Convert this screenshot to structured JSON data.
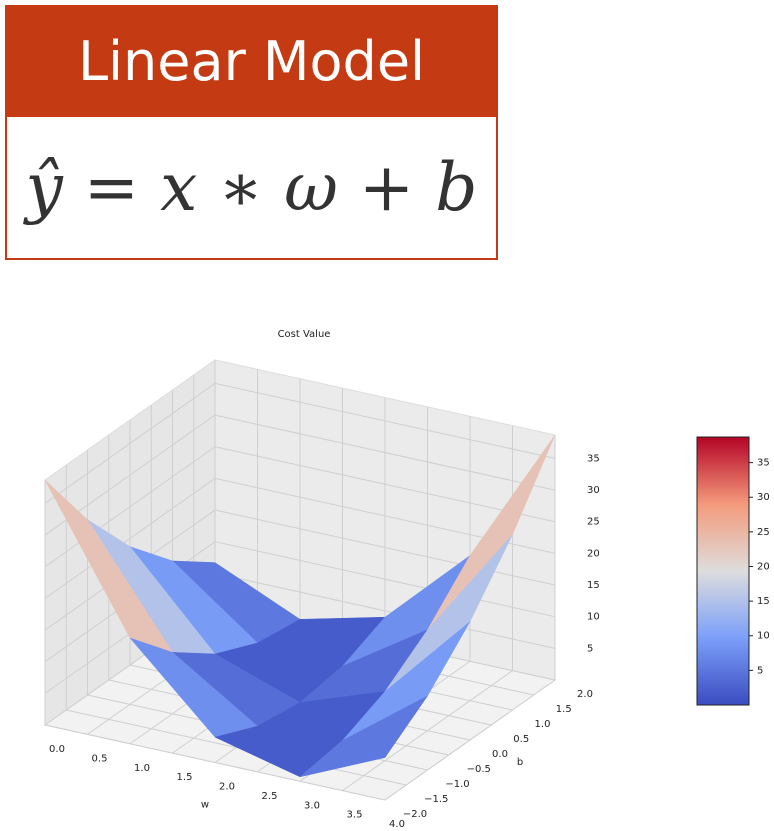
{
  "header": {
    "title": "Linear Model",
    "formula": "ŷ = x ∗ ω + b"
  },
  "chart_data": {
    "type": "surface",
    "title": "Cost Value",
    "xlabel": "w",
    "ylabel": "b",
    "x": [
      0,
      1,
      2,
      3,
      4
    ],
    "y": [
      -2,
      -1,
      0,
      1,
      2
    ],
    "z": [
      [
        38.7,
        27.7,
        18.7,
        11.7,
        6.7
      ],
      [
        16.7,
        9.7,
        4.7,
        1.7,
        0.7
      ],
      [
        4,
        1,
        0,
        1,
        4
      ],
      [
        0.7,
        1.7,
        4.7,
        9.7,
        16.7
      ],
      [
        6.7,
        11.7,
        18.7,
        27.7,
        38.7
      ]
    ],
    "xlim": [
      0,
      4
    ],
    "ylim": [
      -2,
      2
    ],
    "zlim": [
      0,
      38.7
    ],
    "xticks": [
      {
        "value": 0,
        "label": "0.0"
      },
      {
        "value": 0.5,
        "label": "0.5"
      },
      {
        "value": 1,
        "label": "1.0"
      },
      {
        "value": 1.5,
        "label": "1.5"
      },
      {
        "value": 2,
        "label": "2.0"
      },
      {
        "value": 2.5,
        "label": "2.5"
      },
      {
        "value": 3,
        "label": "3.0"
      },
      {
        "value": 3.5,
        "label": "3.5"
      },
      {
        "value": 4,
        "label": "4.0"
      }
    ],
    "yticks": [
      {
        "value": -2,
        "label": "−2.0"
      },
      {
        "value": -1.5,
        "label": "−1.5"
      },
      {
        "value": -1,
        "label": "−1.0"
      },
      {
        "value": -0.5,
        "label": "−0.5"
      },
      {
        "value": 0,
        "label": "0.0"
      },
      {
        "value": 0.5,
        "label": "0.5"
      },
      {
        "value": 1,
        "label": "1.0"
      },
      {
        "value": 1.5,
        "label": "1.5"
      },
      {
        "value": 2,
        "label": "2.0"
      }
    ],
    "zticks": [
      5,
      10,
      15,
      20,
      25,
      30,
      35
    ],
    "colormap": "coolwarm",
    "clim": [
      0,
      38.7
    ],
    "cticks": [
      5,
      10,
      15,
      20,
      25,
      30,
      35
    ],
    "grid": true
  }
}
